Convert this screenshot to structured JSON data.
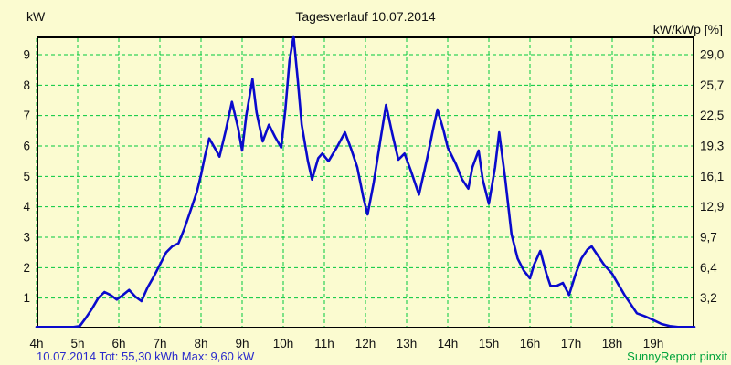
{
  "page": {
    "background": "#FBFBD0",
    "title": "Tagesverlauf 10.07.2014",
    "left_axis_unit": "kW",
    "right_axis_unit": "kW/kWp [%]",
    "footer_left": "10.07.2014 Tot: 55,30 kWh Max: 9,60 kW",
    "footer_right": "SunnyReport pinxit"
  },
  "chart_data": {
    "type": "line",
    "title": "Tagesverlauf 10.07.2014",
    "xlabel": "",
    "ylabel_left": "kW",
    "ylabel_right": "kW/kWp [%]",
    "x_range_hours": [
      4,
      20
    ],
    "ylim_left": [
      0,
      9.6
    ],
    "x_tick_labels": [
      "4h",
      "5h",
      "6h",
      "7h",
      "8h",
      "9h",
      "10h",
      "11h",
      "12h",
      "13h",
      "14h",
      "15h",
      "16h",
      "17h",
      "18h",
      "19h"
    ],
    "y_ticks_left": [
      1,
      2,
      3,
      4,
      5,
      6,
      7,
      8,
      9
    ],
    "y_tick_labels_right": [
      "3,2",
      "6,4",
      "9,7",
      "12,9",
      "16,1",
      "19,3",
      "22,5",
      "25,7",
      "29,0"
    ],
    "grid": {
      "color": "#00C83C",
      "dash": "4 3",
      "on": true
    },
    "line_color": "#0A0ACC",
    "stats": {
      "date": "10.07.2014",
      "total_kwh": "55,30",
      "max_kw": "9,60"
    },
    "legend": [],
    "series": [
      {
        "name": "power_kw",
        "points": [
          [
            4.0,
            0.05
          ],
          [
            4.3,
            0.05
          ],
          [
            4.6,
            0.05
          ],
          [
            4.9,
            0.05
          ],
          [
            5.05,
            0.08
          ],
          [
            5.2,
            0.35
          ],
          [
            5.35,
            0.65
          ],
          [
            5.5,
            1.0
          ],
          [
            5.65,
            1.2
          ],
          [
            5.8,
            1.1
          ],
          [
            5.95,
            0.95
          ],
          [
            6.1,
            1.1
          ],
          [
            6.25,
            1.27
          ],
          [
            6.4,
            1.05
          ],
          [
            6.55,
            0.9
          ],
          [
            6.7,
            1.35
          ],
          [
            6.85,
            1.7
          ],
          [
            7.0,
            2.1
          ],
          [
            7.15,
            2.5
          ],
          [
            7.3,
            2.7
          ],
          [
            7.45,
            2.8
          ],
          [
            7.6,
            3.3
          ],
          [
            7.75,
            3.9
          ],
          [
            7.9,
            4.5
          ],
          [
            8.0,
            5.05
          ],
          [
            8.1,
            5.7
          ],
          [
            8.2,
            6.25
          ],
          [
            8.35,
            5.9
          ],
          [
            8.45,
            5.65
          ],
          [
            8.6,
            6.5
          ],
          [
            8.75,
            7.45
          ],
          [
            8.9,
            6.6
          ],
          [
            9.0,
            5.85
          ],
          [
            9.1,
            7.0
          ],
          [
            9.25,
            8.2
          ],
          [
            9.35,
            7.1
          ],
          [
            9.5,
            6.15
          ],
          [
            9.65,
            6.7
          ],
          [
            9.8,
            6.3
          ],
          [
            9.95,
            5.95
          ],
          [
            10.05,
            7.2
          ],
          [
            10.15,
            8.8
          ],
          [
            10.25,
            9.6
          ],
          [
            10.35,
            8.2
          ],
          [
            10.45,
            6.7
          ],
          [
            10.6,
            5.5
          ],
          [
            10.7,
            4.9
          ],
          [
            10.85,
            5.6
          ],
          [
            10.95,
            5.75
          ],
          [
            11.1,
            5.5
          ],
          [
            11.3,
            5.95
          ],
          [
            11.5,
            6.45
          ],
          [
            11.65,
            5.9
          ],
          [
            11.8,
            5.3
          ],
          [
            11.95,
            4.3
          ],
          [
            12.05,
            3.75
          ],
          [
            12.2,
            4.8
          ],
          [
            12.35,
            6.1
          ],
          [
            12.5,
            7.35
          ],
          [
            12.65,
            6.4
          ],
          [
            12.8,
            5.55
          ],
          [
            12.95,
            5.75
          ],
          [
            13.1,
            5.2
          ],
          [
            13.3,
            4.4
          ],
          [
            13.5,
            5.6
          ],
          [
            13.65,
            6.6
          ],
          [
            13.75,
            7.2
          ],
          [
            13.9,
            6.5
          ],
          [
            14.0,
            5.95
          ],
          [
            14.2,
            5.4
          ],
          [
            14.35,
            4.9
          ],
          [
            14.5,
            4.6
          ],
          [
            14.6,
            5.3
          ],
          [
            14.75,
            5.85
          ],
          [
            14.85,
            4.9
          ],
          [
            15.0,
            4.1
          ],
          [
            15.15,
            5.3
          ],
          [
            15.25,
            6.45
          ],
          [
            15.4,
            4.9
          ],
          [
            15.55,
            3.1
          ],
          [
            15.7,
            2.3
          ],
          [
            15.85,
            1.9
          ],
          [
            16.0,
            1.65
          ],
          [
            16.1,
            2.1
          ],
          [
            16.25,
            2.55
          ],
          [
            16.4,
            1.8
          ],
          [
            16.5,
            1.4
          ],
          [
            16.65,
            1.4
          ],
          [
            16.8,
            1.5
          ],
          [
            16.95,
            1.1
          ],
          [
            17.1,
            1.75
          ],
          [
            17.25,
            2.3
          ],
          [
            17.4,
            2.6
          ],
          [
            17.5,
            2.7
          ],
          [
            17.65,
            2.4
          ],
          [
            17.8,
            2.1
          ],
          [
            18.0,
            1.8
          ],
          [
            18.15,
            1.45
          ],
          [
            18.3,
            1.1
          ],
          [
            18.45,
            0.8
          ],
          [
            18.6,
            0.5
          ],
          [
            18.8,
            0.4
          ],
          [
            19.0,
            0.28
          ],
          [
            19.2,
            0.15
          ],
          [
            19.4,
            0.08
          ],
          [
            19.6,
            0.05
          ],
          [
            19.8,
            0.05
          ],
          [
            20.0,
            0.05
          ]
        ]
      }
    ]
  }
}
